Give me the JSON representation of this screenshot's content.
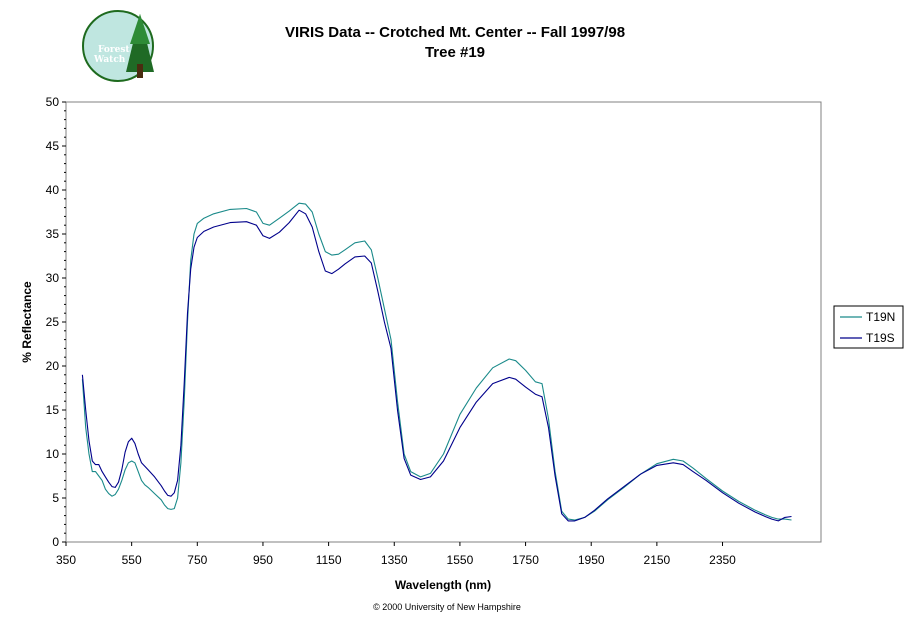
{
  "logo": {
    "line1": "Forest",
    "line2": "Watch"
  },
  "chart_data": {
    "type": "line",
    "title": "VIRIS Data -- Crotched Mt. Center -- Fall 1997/98",
    "subtitle": "Tree #19",
    "xlabel": "Wavelength (nm)",
    "ylabel": "% Reflectance",
    "xlim": [
      350,
      2500
    ],
    "ylim": [
      0,
      50
    ],
    "xticks": [
      350,
      550,
      750,
      950,
      1150,
      1350,
      1550,
      1750,
      1950,
      2150,
      2350
    ],
    "yticks": [
      0,
      5,
      10,
      15,
      20,
      25,
      30,
      35,
      40,
      45,
      50
    ],
    "grid": false,
    "legend_position": "right",
    "footer": "© 2000 University of New Hampshire",
    "series": [
      {
        "name": "T19N",
        "color": "#1a8a8a",
        "points": [
          [
            400,
            18.5
          ],
          [
            410,
            13
          ],
          [
            420,
            10
          ],
          [
            430,
            8
          ],
          [
            440,
            8
          ],
          [
            450,
            7.5
          ],
          [
            460,
            7
          ],
          [
            470,
            6
          ],
          [
            480,
            5.5
          ],
          [
            490,
            5.2
          ],
          [
            500,
            5.4
          ],
          [
            510,
            6
          ],
          [
            520,
            7
          ],
          [
            530,
            8.2
          ],
          [
            540,
            9
          ],
          [
            550,
            9.2
          ],
          [
            560,
            9
          ],
          [
            570,
            8
          ],
          [
            580,
            7
          ],
          [
            590,
            6.5
          ],
          [
            600,
            6.2
          ],
          [
            620,
            5.5
          ],
          [
            640,
            4.8
          ],
          [
            650,
            4.2
          ],
          [
            660,
            3.8
          ],
          [
            670,
            3.7
          ],
          [
            680,
            3.8
          ],
          [
            690,
            5
          ],
          [
            700,
            9
          ],
          [
            710,
            16
          ],
          [
            720,
            25
          ],
          [
            730,
            32
          ],
          [
            740,
            35
          ],
          [
            750,
            36.2
          ],
          [
            770,
            36.8
          ],
          [
            800,
            37.3
          ],
          [
            850,
            37.8
          ],
          [
            900,
            37.9
          ],
          [
            930,
            37.5
          ],
          [
            950,
            36.2
          ],
          [
            970,
            36
          ],
          [
            1000,
            36.8
          ],
          [
            1030,
            37.6
          ],
          [
            1060,
            38.5
          ],
          [
            1080,
            38.4
          ],
          [
            1100,
            37.5
          ],
          [
            1120,
            35
          ],
          [
            1140,
            33
          ],
          [
            1160,
            32.6
          ],
          [
            1180,
            32.7
          ],
          [
            1200,
            33.2
          ],
          [
            1230,
            34
          ],
          [
            1260,
            34.2
          ],
          [
            1280,
            33.2
          ],
          [
            1300,
            30
          ],
          [
            1320,
            26.5
          ],
          [
            1340,
            23
          ],
          [
            1360,
            16
          ],
          [
            1380,
            10
          ],
          [
            1400,
            8
          ],
          [
            1430,
            7.4
          ],
          [
            1460,
            7.8
          ],
          [
            1500,
            10
          ],
          [
            1550,
            14.5
          ],
          [
            1600,
            17.5
          ],
          [
            1650,
            19.8
          ],
          [
            1700,
            20.8
          ],
          [
            1720,
            20.6
          ],
          [
            1750,
            19.5
          ],
          [
            1780,
            18.2
          ],
          [
            1800,
            18
          ],
          [
            1820,
            14
          ],
          [
            1840,
            8
          ],
          [
            1860,
            3.5
          ],
          [
            1880,
            2.6
          ],
          [
            1900,
            2.5
          ],
          [
            1930,
            2.8
          ],
          [
            1960,
            3.5
          ],
          [
            2000,
            4.8
          ],
          [
            2050,
            6.2
          ],
          [
            2100,
            7.7
          ],
          [
            2150,
            8.9
          ],
          [
            2200,
            9.4
          ],
          [
            2230,
            9.2
          ],
          [
            2260,
            8.4
          ],
          [
            2300,
            7.2
          ],
          [
            2350,
            5.8
          ],
          [
            2400,
            4.6
          ],
          [
            2450,
            3.6
          ],
          [
            2480,
            3.1
          ],
          [
            2500,
            2.8
          ],
          [
            2520,
            2.6
          ],
          [
            2540,
            2.6
          ],
          [
            2560,
            2.5
          ]
        ]
      },
      {
        "name": "T19S",
        "color": "#00008b",
        "points": [
          [
            400,
            19
          ],
          [
            410,
            15
          ],
          [
            420,
            11.5
          ],
          [
            430,
            9.2
          ],
          [
            440,
            8.8
          ],
          [
            450,
            8.8
          ],
          [
            460,
            8
          ],
          [
            470,
            7.4
          ],
          [
            480,
            6.8
          ],
          [
            490,
            6.3
          ],
          [
            500,
            6.2
          ],
          [
            510,
            6.8
          ],
          [
            520,
            8.2
          ],
          [
            530,
            10.2
          ],
          [
            540,
            11.4
          ],
          [
            550,
            11.8
          ],
          [
            560,
            11.2
          ],
          [
            570,
            10
          ],
          [
            580,
            9
          ],
          [
            590,
            8.6
          ],
          [
            600,
            8.2
          ],
          [
            620,
            7.4
          ],
          [
            640,
            6.4
          ],
          [
            650,
            5.8
          ],
          [
            660,
            5.3
          ],
          [
            670,
            5.2
          ],
          [
            680,
            5.6
          ],
          [
            690,
            7
          ],
          [
            700,
            11
          ],
          [
            710,
            18
          ],
          [
            720,
            26
          ],
          [
            730,
            31
          ],
          [
            740,
            33.5
          ],
          [
            750,
            34.6
          ],
          [
            770,
            35.3
          ],
          [
            800,
            35.8
          ],
          [
            850,
            36.3
          ],
          [
            900,
            36.4
          ],
          [
            930,
            36
          ],
          [
            950,
            34.8
          ],
          [
            970,
            34.5
          ],
          [
            1000,
            35.2
          ],
          [
            1030,
            36.3
          ],
          [
            1060,
            37.7
          ],
          [
            1080,
            37.3
          ],
          [
            1100,
            35.8
          ],
          [
            1120,
            33
          ],
          [
            1140,
            30.8
          ],
          [
            1160,
            30.5
          ],
          [
            1180,
            31
          ],
          [
            1200,
            31.6
          ],
          [
            1230,
            32.4
          ],
          [
            1260,
            32.5
          ],
          [
            1280,
            31.7
          ],
          [
            1300,
            28.5
          ],
          [
            1320,
            25
          ],
          [
            1340,
            22
          ],
          [
            1360,
            15
          ],
          [
            1380,
            9.5
          ],
          [
            1400,
            7.6
          ],
          [
            1430,
            7.1
          ],
          [
            1460,
            7.4
          ],
          [
            1500,
            9.2
          ],
          [
            1550,
            13
          ],
          [
            1600,
            15.9
          ],
          [
            1650,
            18
          ],
          [
            1700,
            18.7
          ],
          [
            1720,
            18.5
          ],
          [
            1750,
            17.6
          ],
          [
            1780,
            16.8
          ],
          [
            1800,
            16.5
          ],
          [
            1820,
            13
          ],
          [
            1840,
            7.5
          ],
          [
            1860,
            3.2
          ],
          [
            1880,
            2.4
          ],
          [
            1900,
            2.4
          ],
          [
            1930,
            2.8
          ],
          [
            1960,
            3.6
          ],
          [
            2000,
            4.9
          ],
          [
            2050,
            6.3
          ],
          [
            2100,
            7.7
          ],
          [
            2150,
            8.7
          ],
          [
            2200,
            9
          ],
          [
            2230,
            8.8
          ],
          [
            2260,
            8
          ],
          [
            2300,
            7
          ],
          [
            2350,
            5.6
          ],
          [
            2400,
            4.4
          ],
          [
            2450,
            3.4
          ],
          [
            2480,
            2.9
          ],
          [
            2500,
            2.6
          ],
          [
            2520,
            2.4
          ],
          [
            2540,
            2.8
          ],
          [
            2560,
            2.9
          ]
        ]
      }
    ]
  }
}
